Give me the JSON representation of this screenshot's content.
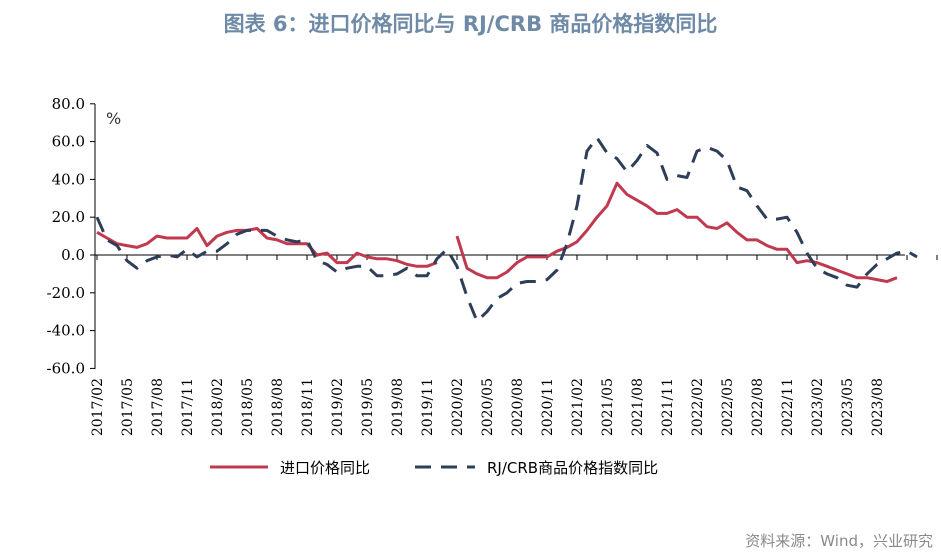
{
  "title": "图表 6：进口价格同比与 RJ/CRB 商品价格指数同比",
  "source": "资料来源：Wind，兴业研究",
  "colors": {
    "import": "#c0394f",
    "crb": "#2f3e58",
    "title": "#6e8aa6"
  },
  "chart_data": {
    "type": "line",
    "unit_label": "%",
    "ylim": [
      -60,
      80
    ],
    "yticks": [
      "80.0",
      "60.0",
      "40.0",
      "20.0",
      "0.0",
      "-20.0",
      "-40.0",
      "-60.0"
    ],
    "xtick_labels": [
      "2017/02",
      "2017/05",
      "2017/08",
      "2017/11",
      "2018/02",
      "2018/05",
      "2018/08",
      "2018/11",
      "2019/02",
      "2019/05",
      "2019/08",
      "2019/11",
      "2020/02",
      "2020/05",
      "2020/08",
      "2020/11",
      "2021/02",
      "2021/05",
      "2021/08",
      "2021/11",
      "2022/02",
      "2022/05",
      "2022/08",
      "2022/11",
      "2023/02",
      "2023/05",
      "2023/08"
    ],
    "x_start": "2017/02",
    "grid": false,
    "legend_position": "bottom",
    "series": [
      {
        "name": "进口价格同比",
        "style": "solid",
        "color": "#c0394f",
        "values": [
          12,
          9,
          6,
          5,
          4,
          6,
          10,
          9,
          9,
          9,
          14,
          5,
          10,
          12,
          13,
          13,
          14,
          9,
          8,
          6,
          6,
          6,
          0,
          1,
          -4,
          -4,
          1,
          -1,
          -2,
          -2,
          -3,
          -5,
          -6,
          -6,
          -4,
          null,
          10,
          -7,
          -10,
          -12,
          -12,
          -9,
          -4,
          -1,
          -1,
          -1,
          2,
          4,
          7,
          13,
          20,
          26,
          38,
          32,
          29,
          26,
          22,
          22,
          24,
          20,
          20,
          15,
          14,
          17,
          12,
          8,
          8,
          5,
          3,
          3,
          -4,
          -3,
          -4,
          -6,
          -8,
          -10,
          -12,
          -12,
          -13,
          -14,
          -12
        ]
      },
      {
        "name": "RJ/CRB商品价格指数同比",
        "style": "dashed",
        "color": "#2f3e58",
        "values": [
          20,
          8,
          5,
          -3,
          -7,
          -3,
          -1,
          0,
          -1,
          3,
          -1,
          2,
          2,
          6,
          11,
          13,
          13,
          13,
          10,
          8,
          7,
          8,
          -3,
          -5,
          -9,
          -7,
          -6,
          -6,
          -11,
          -11,
          -10,
          -7,
          -11,
          -11,
          -2,
          3,
          -6,
          -22,
          -35,
          -30,
          -23,
          -20,
          -15,
          -14,
          -14,
          -13,
          -8,
          6,
          26,
          55,
          62,
          54,
          51,
          44,
          50,
          58,
          54,
          40,
          42,
          41,
          55,
          57,
          55,
          50,
          36,
          34,
          26,
          19,
          19,
          20,
          12,
          1,
          -7,
          -10,
          -12,
          -16,
          -17,
          -10,
          -5,
          -2,
          1,
          2,
          -1
        ]
      }
    ]
  }
}
